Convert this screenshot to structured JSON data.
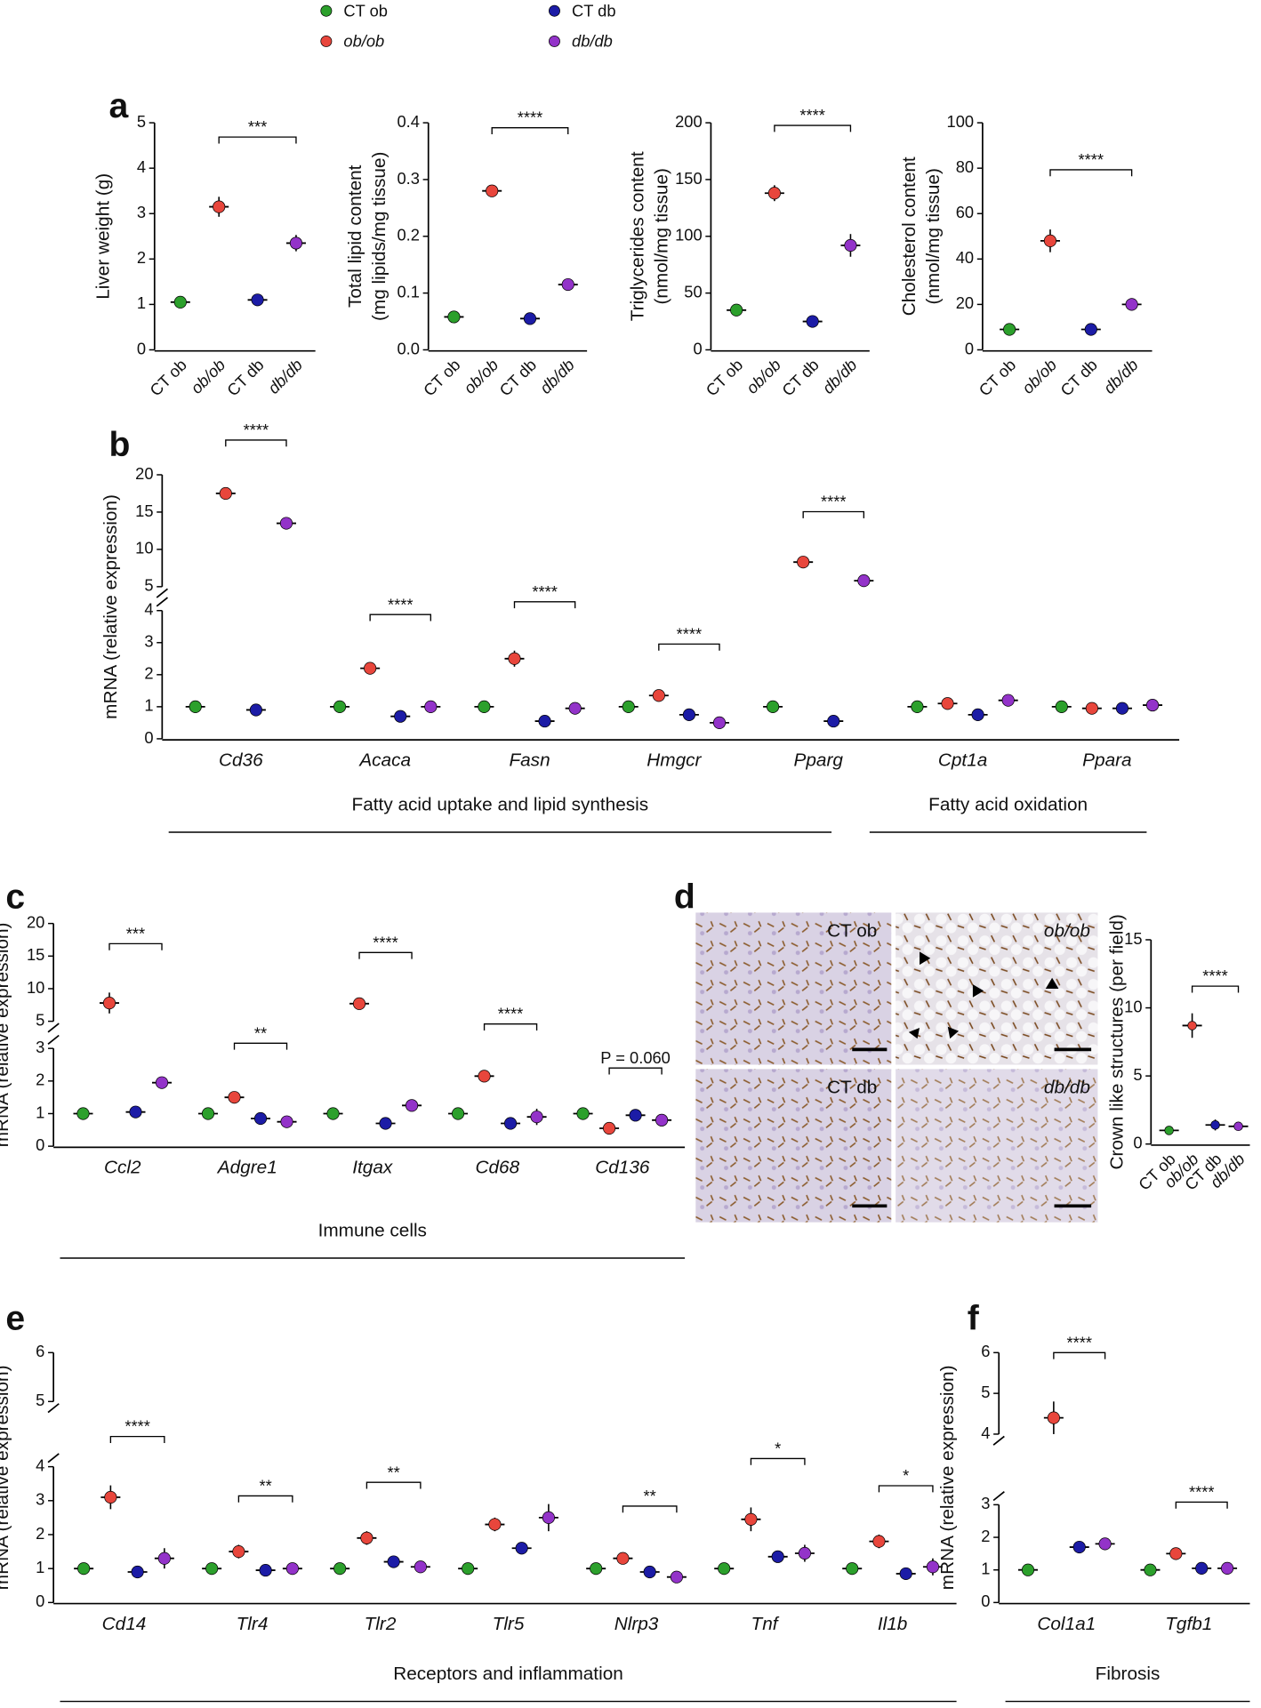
{
  "legend": {
    "items": [
      {
        "name": "CT ob",
        "color": "#2ca02c"
      },
      {
        "name": "ob/ob",
        "color": "#e8463c"
      },
      {
        "name": "CT db",
        "color": "#1c1ca6"
      },
      {
        "name": "db/db",
        "color": "#9333c9"
      }
    ]
  },
  "micrographs": {
    "labels": [
      "CT ob",
      "ob/ob",
      "CT db",
      "db/db"
    ]
  },
  "chart_data": [
    {
      "type": "dot",
      "panel": "a",
      "ylabel": [
        "Liver weight (g)"
      ],
      "categories": [
        "CT ob",
        "ob/ob",
        "CT db",
        "db/db"
      ],
      "values": [
        1.05,
        3.15,
        1.1,
        2.35
      ],
      "errors": [
        0.05,
        0.22,
        0.04,
        0.18
      ],
      "colors": [
        "#2ca02c",
        "#e8463c",
        "#1c1ca6",
        "#9333c9"
      ],
      "ylim": [
        0,
        5
      ],
      "yticks": [
        0,
        1,
        2,
        3,
        4,
        5
      ],
      "significance": "***"
    },
    {
      "type": "dot",
      "ylabel": [
        "Total lipid content",
        "(mg lipids/mg tissue)"
      ],
      "categories": [
        "CT ob",
        "ob/ob",
        "CT db",
        "db/db"
      ],
      "values": [
        0.058,
        0.28,
        0.055,
        0.115
      ],
      "errors": [
        0.003,
        0.006,
        0.003,
        0.008
      ],
      "colors": [
        "#2ca02c",
        "#e8463c",
        "#1c1ca6",
        "#9333c9"
      ],
      "ylim": [
        0,
        0.4
      ],
      "yticks": [
        {
          "value": 0,
          "label": "0.0"
        },
        0.1,
        0.2,
        0.3,
        0.4
      ],
      "significance": "****"
    },
    {
      "type": "dot",
      "ylabel": [
        "Triglycerides content",
        "(nmol/mg tissue)"
      ],
      "categories": [
        "CT ob",
        "ob/ob",
        "CT db",
        "db/db"
      ],
      "values": [
        35,
        138,
        25,
        92
      ],
      "errors": [
        4,
        7,
        2,
        10
      ],
      "colors": [
        "#2ca02c",
        "#e8463c",
        "#1c1ca6",
        "#9333c9"
      ],
      "ylim": [
        0,
        200
      ],
      "yticks": [
        0,
        50,
        100,
        150,
        200
      ],
      "significance": "****"
    },
    {
      "type": "dot",
      "ylabel": [
        "Cholesterol content",
        "(nmol/mg tissue)"
      ],
      "categories": [
        "CT ob",
        "ob/ob",
        "CT db",
        "db/db"
      ],
      "values": [
        9,
        48,
        9,
        20
      ],
      "errors": [
        1,
        5,
        1,
        2.5
      ],
      "colors": [
        "#2ca02c",
        "#e8463c",
        "#1c1ca6",
        "#9333c9"
      ],
      "ylim": [
        0,
        100
      ],
      "yticks": [
        0,
        20,
        40,
        60,
        80,
        100
      ],
      "significance": "****"
    },
    {
      "type": "grouped_dot",
      "panel": "b",
      "ylabel": [
        "mRNA (relative expression)"
      ],
      "categories": [
        "Cd36",
        "Acaca",
        "Fasn",
        "Hmgcr",
        "Pparg",
        "Cpt1a",
        "Ppara"
      ],
      "series": [
        {
          "color": "#2ca02c",
          "values": [
            1,
            1,
            1,
            1,
            1,
            1,
            1
          ],
          "errors": [
            0.1,
            0.08,
            0.09,
            0.06,
            0.12,
            0.06,
            0.05
          ]
        },
        {
          "color": "#e8463c",
          "values": [
            17.5,
            2.2,
            2.5,
            1.35,
            8.3,
            1.1,
            0.95
          ],
          "errors": [
            0.6,
            0.15,
            0.25,
            0.08,
            0.2,
            0.08,
            0.06
          ]
        },
        {
          "color": "#1c1ca6",
          "values": [
            0.9,
            0.7,
            0.55,
            0.75,
            0.55,
            0.75,
            0.95
          ],
          "errors": [
            0.03,
            0.05,
            0.03,
            0.04,
            0.04,
            0.03,
            0.04
          ]
        },
        {
          "color": "#9333c9",
          "values": [
            13.5,
            1.0,
            0.95,
            0.5,
            5.8,
            1.2,
            1.05
          ],
          "errors": [
            0.8,
            0.12,
            0.12,
            0.04,
            0.5,
            0.08,
            0.05
          ]
        }
      ],
      "ylim": [
        0,
        20
      ],
      "ybreak": [
        4,
        5
      ],
      "yticks": [
        0,
        1,
        2,
        3,
        4,
        5,
        10,
        15,
        20
      ],
      "significance": [
        "****",
        "****",
        "****",
        "****",
        "****",
        null,
        null
      ],
      "group_labels": [
        "Fatty acid uptake and lipid synthesis",
        "Fatty acid oxidation"
      ]
    },
    {
      "type": "grouped_dot",
      "panel": "c",
      "ylabel": [
        "mRNA (relative expression)"
      ],
      "categories": [
        "Ccl2",
        "Adgre1",
        "Itgax",
        "Cd68",
        "Cd136"
      ],
      "series": [
        {
          "color": "#2ca02c",
          "values": [
            1,
            1,
            1,
            1,
            1
          ],
          "errors": [
            0.12,
            0.08,
            0.09,
            0.05,
            0.04
          ]
        },
        {
          "color": "#e8463c",
          "values": [
            7.8,
            1.5,
            7.7,
            2.15,
            0.55
          ],
          "errors": [
            1.6,
            0.16,
            0.35,
            0.1,
            0.09
          ]
        },
        {
          "color": "#1c1ca6",
          "values": [
            1.05,
            0.85,
            0.7,
            0.7,
            0.95
          ],
          "errors": [
            0.1,
            0.05,
            0.05,
            0.03,
            0.06
          ]
        },
        {
          "color": "#9333c9",
          "values": [
            1.95,
            0.75,
            1.25,
            0.9,
            0.8
          ],
          "errors": [
            0.18,
            0.17,
            0.18,
            0.25,
            0.1
          ]
        }
      ],
      "ylim": [
        0,
        20
      ],
      "ybreak": [
        3,
        5
      ],
      "yticks": [
        0,
        1,
        2,
        3,
        5,
        10,
        15,
        20
      ],
      "significance": [
        "***",
        "**",
        "****",
        "****",
        "P = 0.060"
      ],
      "group_labels": [
        "Immune cells"
      ]
    },
    {
      "type": "dot",
      "panel": "d",
      "ylabel": [
        "Crown like structures (per field)"
      ],
      "categories": [
        "CT ob",
        "ob/ob",
        "CT db",
        "db/db"
      ],
      "values": [
        1,
        8.7,
        1.4,
        1.3
      ],
      "errors": [
        0.2,
        0.9,
        0.4,
        0.2
      ],
      "colors": [
        "#2ca02c",
        "#e8463c",
        "#1c1ca6",
        "#9333c9"
      ],
      "ylim": [
        0,
        15
      ],
      "yticks": [
        0,
        5,
        10,
        15
      ],
      "significance": "****"
    },
    {
      "type": "grouped_dot",
      "panel": "e",
      "ylabel": [
        "mRNA (relative expression)"
      ],
      "categories": [
        "Cd14",
        "Tlr4",
        "Tlr2",
        "Tlr5",
        "Nlrp3",
        "Tnf",
        "Il1b"
      ],
      "series": [
        {
          "color": "#2ca02c",
          "values": [
            1,
            1,
            1,
            1,
            1,
            1,
            1
          ],
          "errors": [
            0.04,
            0.06,
            0.07,
            0.08,
            0.06,
            0.1,
            0.08
          ]
        },
        {
          "color": "#e8463c",
          "values": [
            3.1,
            1.5,
            1.9,
            2.3,
            1.3,
            2.45,
            1.8
          ],
          " errors": null,
          "errors": [
            0.35,
            0.2,
            0.2,
            0.2,
            0.1,
            0.35,
            0.2
          ]
        },
        {
          "color": "#1c1ca6",
          "values": [
            0.9,
            0.95,
            1.2,
            1.6,
            0.9,
            1.35,
            0.85
          ],
          "errors": [
            0.05,
            0.05,
            0.07,
            0.15,
            0.04,
            0.15,
            0.08
          ]
        },
        {
          "color": "#9333c9",
          "values": [
            1.3,
            1.0,
            1.05,
            2.5,
            0.75,
            1.45,
            1.05
          ],
          "errors": [
            0.3,
            0.1,
            0.13,
            0.4,
            0.1,
            0.25,
            0.25
          ]
        }
      ],
      "ylim": [
        0,
        6
      ],
      "ybreak": [
        4,
        5
      ],
      "yticks": [
        0,
        1,
        2,
        3,
        4,
        5,
        6
      ],
      "significance": [
        "****",
        "**",
        "**",
        null,
        "**",
        "*",
        "*"
      ],
      "group_labels": [
        "Receptors and inflammation"
      ]
    },
    {
      "type": "grouped_dot",
      "panel": "f",
      "ylabel": [
        "mRNA (relative expression)"
      ],
      "categories": [
        "Col1a1",
        "Tgfb1"
      ],
      "series": [
        {
          "color": "#2ca02c",
          "values": [
            1,
            1
          ],
          "errors": [
            0.08,
            0.05
          ]
        },
        {
          "color": "#e8463c",
          "values": [
            4.4,
            1.5
          ],
          "errors": [
            0.4,
            0.08
          ]
        },
        {
          "color": "#1c1ca6",
          "values": [
            1.7,
            1.05
          ],
          "errors": [
            0.15,
            0.03
          ]
        },
        {
          "color": "#9333c9",
          "values": [
            1.8,
            1.05
          ],
          "errors": [
            0.12,
            0.06
          ]
        }
      ],
      "ylim": [
        0,
        6
      ],
      "ybreak": [
        3,
        4
      ],
      "yticks": [
        0,
        1,
        2,
        3,
        4,
        5,
        6
      ],
      "significance": [
        "****",
        "****"
      ],
      "group_labels": [
        "Fibrosis"
      ]
    }
  ]
}
